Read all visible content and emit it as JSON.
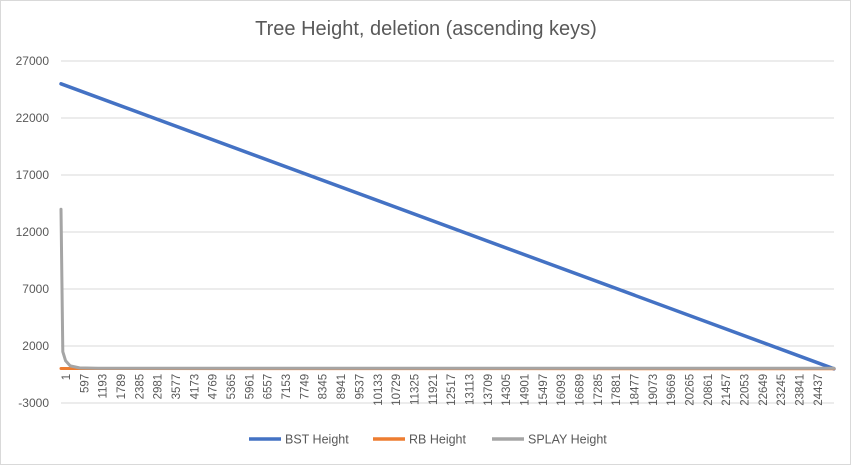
{
  "chart_data": {
    "type": "line",
    "title": "Tree Height, deletion (ascending keys)",
    "xlabel": "",
    "ylabel": "",
    "ylim": [
      -3000,
      27000
    ],
    "y_ticks": [
      27000,
      22000,
      17000,
      12000,
      7000,
      2000,
      -3000
    ],
    "x_range": [
      1,
      25000
    ],
    "x_tick_labels": [
      "1",
      "597",
      "1193",
      "1789",
      "2385",
      "2981",
      "3577",
      "4173",
      "4769",
      "5365",
      "5961",
      "6557",
      "7153",
      "7749",
      "8345",
      "8941",
      "9537",
      "10133",
      "10729",
      "11325",
      "11921",
      "12517",
      "13113",
      "13709",
      "14305",
      "14901",
      "15497",
      "16093",
      "16689",
      "17285",
      "17881",
      "18477",
      "19073",
      "19669",
      "20265",
      "20861",
      "21457",
      "22053",
      "22649",
      "23245",
      "23841",
      "24437"
    ],
    "grid": true,
    "legend": "bottom",
    "series": [
      {
        "name": "BST Height",
        "color": "#4472C4",
        "points": [
          [
            1,
            24999
          ],
          [
            25000,
            0
          ]
        ]
      },
      {
        "name": "RB Height",
        "color": "#ED7D31",
        "points": [
          [
            1,
            27
          ],
          [
            25000,
            1
          ]
        ]
      },
      {
        "name": "SPLAY Height",
        "color": "#A5A5A5",
        "points": [
          [
            1,
            14000
          ],
          [
            60,
            1500
          ],
          [
            150,
            700
          ],
          [
            300,
            250
          ],
          [
            600,
            80
          ],
          [
            1200,
            50
          ],
          [
            25000,
            40
          ]
        ]
      }
    ]
  }
}
